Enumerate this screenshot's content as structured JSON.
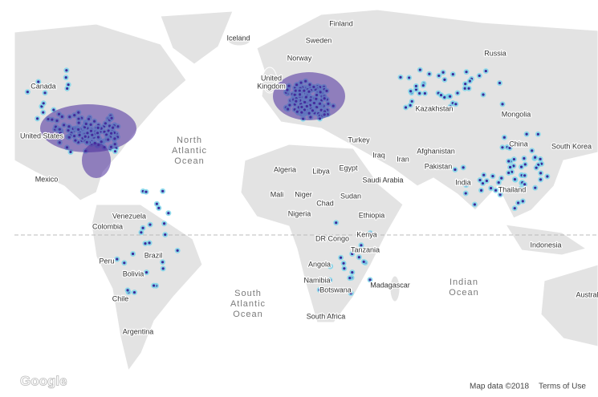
{
  "map": {
    "labels": [
      [
        "Canada"
      ],
      [
        "United States"
      ],
      [
        "Mexico"
      ],
      [
        "Venezuela"
      ],
      [
        "Colombia"
      ],
      [
        "Peru"
      ],
      [
        "Brazil"
      ],
      [
        "Bolivia"
      ],
      [
        "Chile"
      ],
      [
        "Argentina"
      ],
      [
        "Iceland"
      ],
      [
        "Sweden"
      ],
      [
        "Finland"
      ],
      [
        "Norway"
      ],
      [
        "United",
        "Kingdom"
      ],
      [
        "Russia"
      ],
      [
        "Kazakhstan"
      ],
      [
        "Mongolia"
      ],
      [
        "China"
      ],
      [
        "South Korea"
      ],
      [
        "Turkey"
      ],
      [
        "Iraq"
      ],
      [
        "Iran"
      ],
      [
        "Afghanistan"
      ],
      [
        "Pakistan"
      ],
      [
        "India"
      ],
      [
        "Thailand"
      ],
      [
        "Indonesia"
      ],
      [
        "Algeria"
      ],
      [
        "Libya"
      ],
      [
        "Egypt"
      ],
      [
        "Saudi Arabia"
      ],
      [
        "Mali"
      ],
      [
        "Niger"
      ],
      [
        "Chad"
      ],
      [
        "Sudan"
      ],
      [
        "Nigeria"
      ],
      [
        "Ethiopia"
      ],
      [
        "DR Congo"
      ],
      [
        "Kenya"
      ],
      [
        "Tanzania"
      ],
      [
        "Angola"
      ],
      [
        "Namibia"
      ],
      [
        "Botswana"
      ],
      [
        "South Africa"
      ],
      [
        "Madagascar"
      ],
      [
        "Australia"
      ]
    ],
    "oceans": [
      [
        "North",
        "Atlantic",
        "Ocean"
      ],
      [
        "South",
        "Atlantic",
        "Ocean"
      ],
      [
        "Indian",
        "Ocean"
      ]
    ],
    "logo": "Google",
    "attribution": {
      "data": "Map data ©2018",
      "terms": "Terms of Use"
    }
  }
}
